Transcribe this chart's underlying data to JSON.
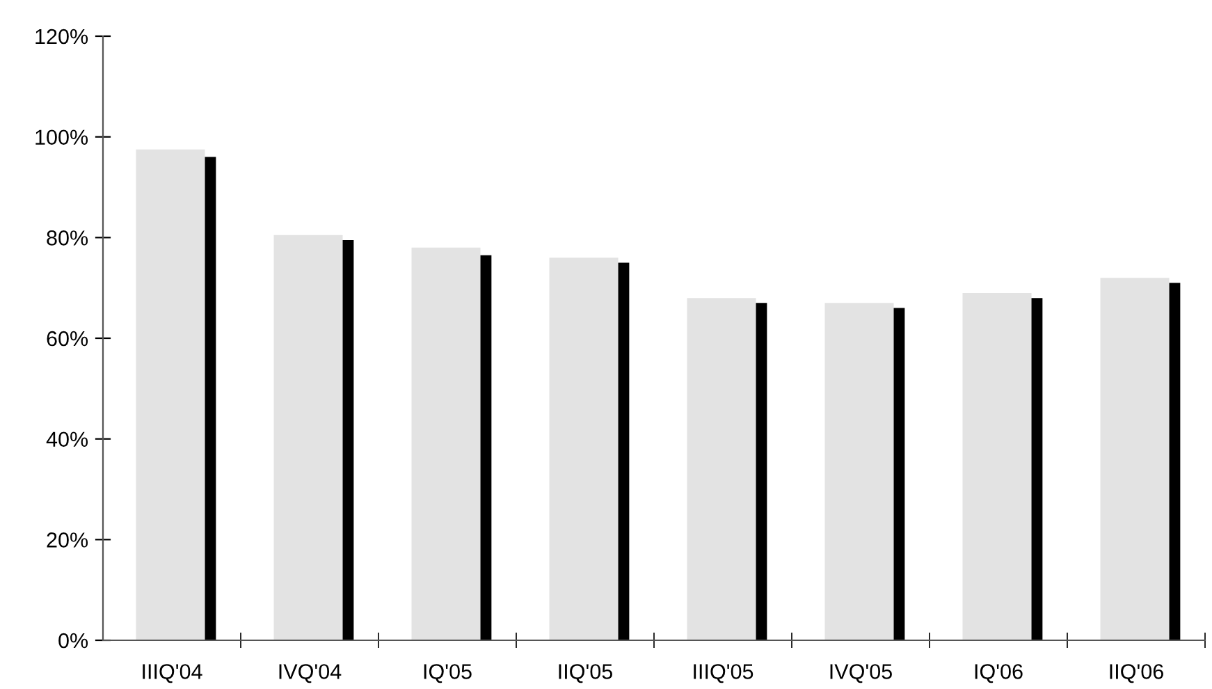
{
  "chart_data": {
    "type": "bar",
    "categories": [
      "IIIQ'04",
      "IVQ'04",
      "IQ'05",
      "IIQ'05",
      "IIIQ'05",
      "IVQ'05",
      "IQ'06",
      "IIQ'06"
    ],
    "series": [
      {
        "color": "#e3e3e3",
        "values": [
          97.5,
          80.5,
          78,
          76,
          68,
          67,
          69,
          72
        ]
      },
      {
        "color": "#000000",
        "values": [
          96,
          79.5,
          76.5,
          75,
          67,
          66,
          68,
          71
        ]
      }
    ],
    "ylim": [
      0,
      120
    ],
    "yticks": [
      {
        "value": 0,
        "label": "0%"
      },
      {
        "value": 20,
        "label": "20%"
      },
      {
        "value": 40,
        "label": "40%"
      },
      {
        "value": 60,
        "label": "60%"
      },
      {
        "value": 80,
        "label": "80%"
      },
      {
        "value": 100,
        "label": "100%"
      },
      {
        "value": 120,
        "label": "120%"
      }
    ],
    "grid": false
  }
}
